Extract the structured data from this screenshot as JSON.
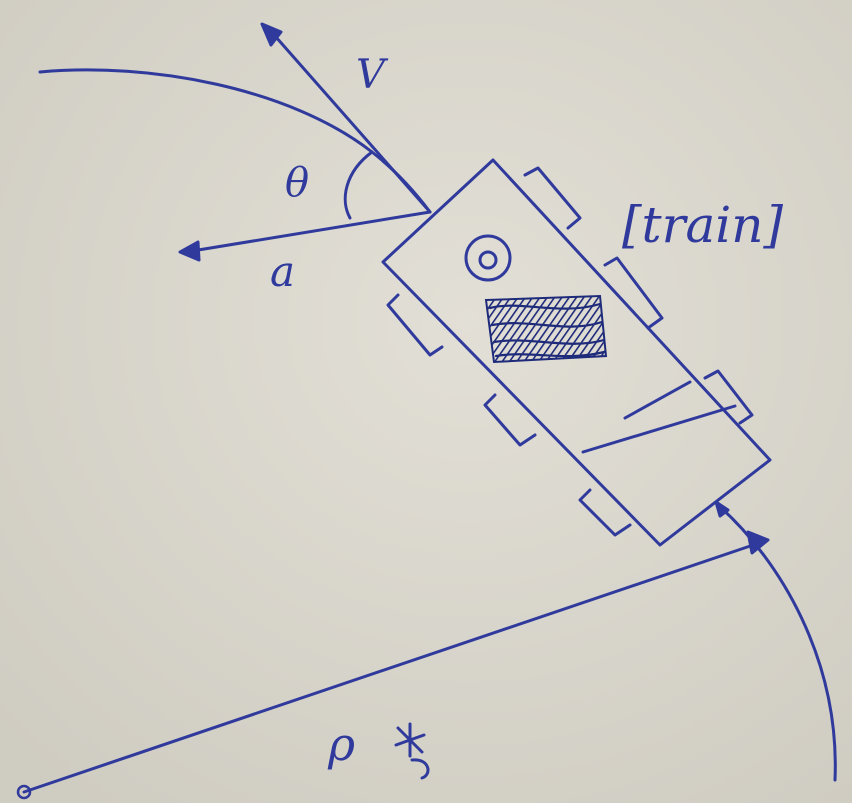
{
  "colors": {
    "paper": "#d9d6cd",
    "ink": "#2f3a9c",
    "scribble": "#1e2a7a"
  },
  "labels": {
    "velocity": "V",
    "angle": "θ",
    "acceleration": "a",
    "object": "[train]",
    "radius": "ρ"
  }
}
